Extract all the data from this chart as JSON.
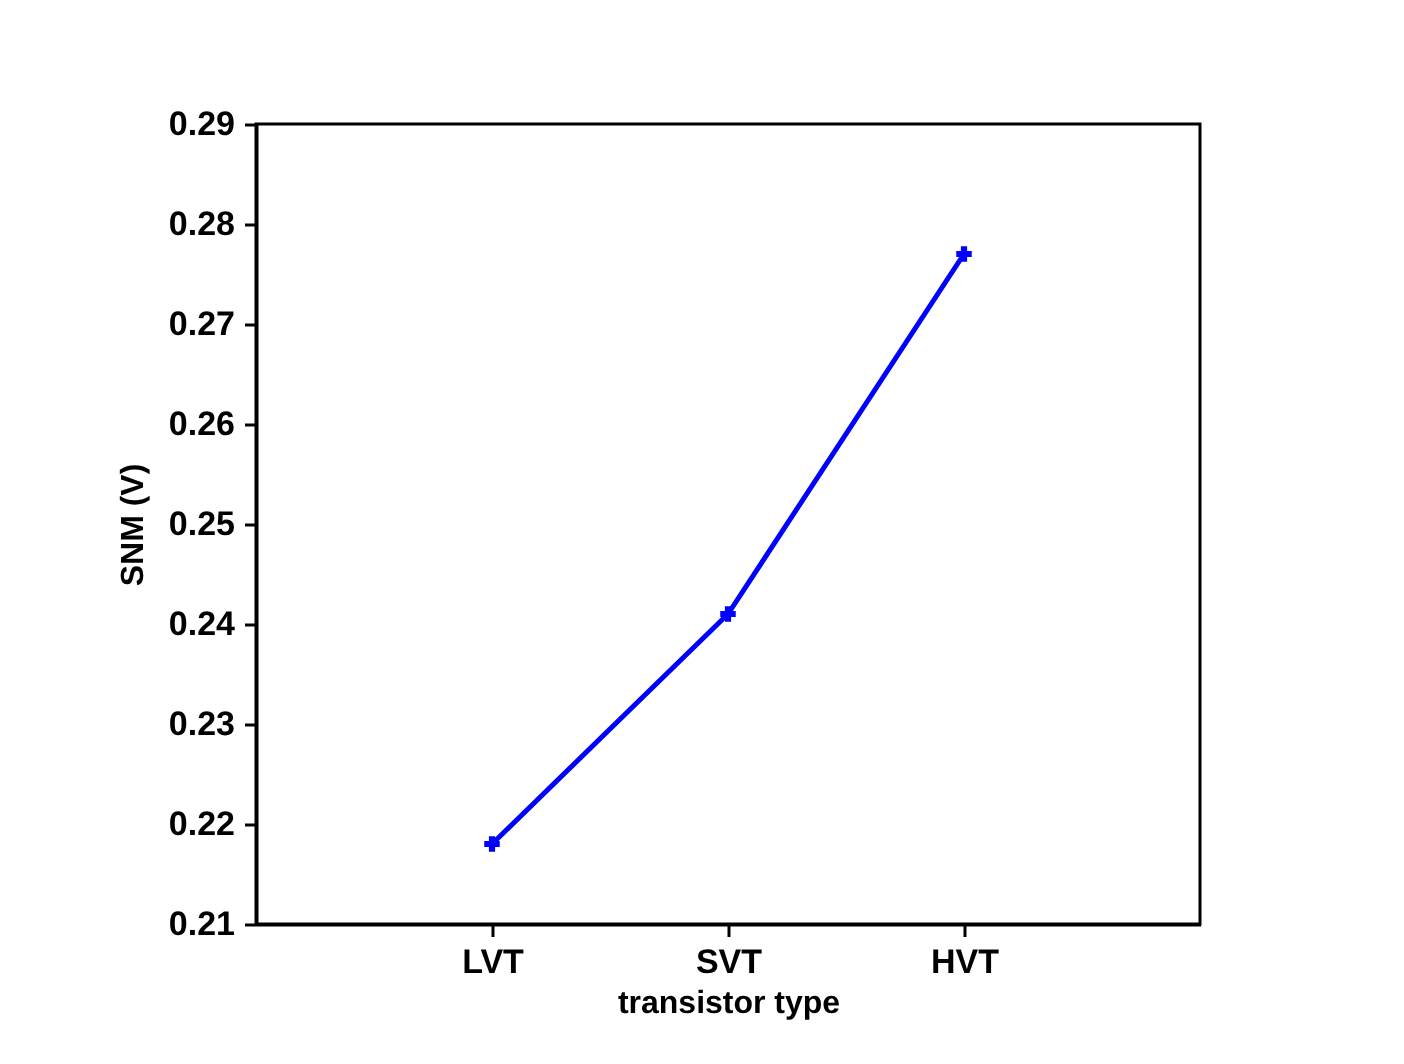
{
  "chart_data": {
    "type": "line",
    "xlabel": "transistor type",
    "ylabel": "SNM (V)",
    "categories": [
      "LVT",
      "SVT",
      "HVT"
    ],
    "series": [
      {
        "color": "#0000ff",
        "values": [
          0.218,
          0.241,
          0.277
        ]
      }
    ],
    "ylim": [
      0.21,
      0.29
    ],
    "yticks": [
      0.21,
      0.22,
      0.23,
      0.24,
      0.25,
      0.26,
      0.27,
      0.28,
      0.29
    ],
    "marker": "cross",
    "line_style": "solid",
    "grid": false
  }
}
